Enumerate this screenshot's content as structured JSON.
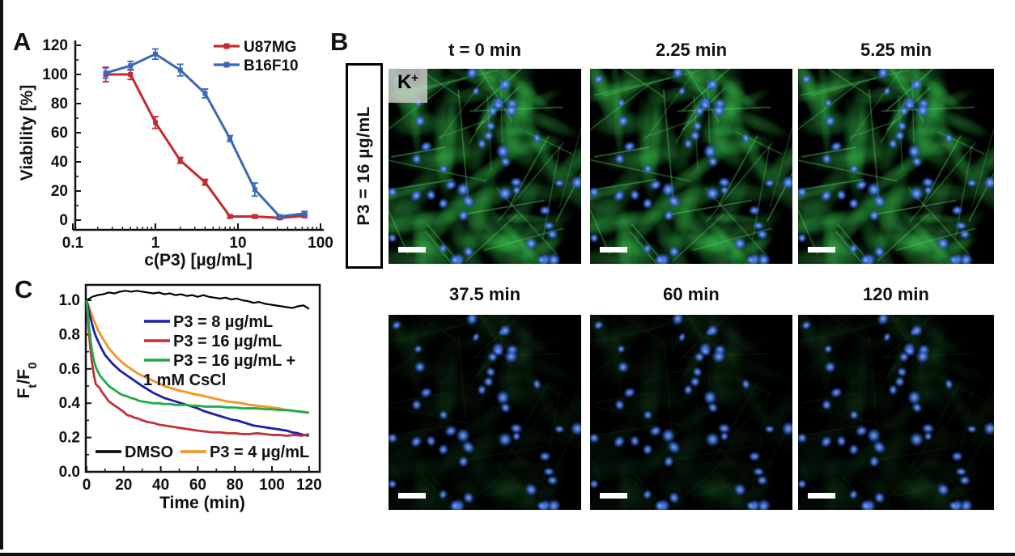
{
  "figure": {
    "background": "#ffffff",
    "edge_color": "#111111"
  },
  "panels": {
    "a_label": "A",
    "b_label": "B",
    "c_label": "C"
  },
  "chart_data": [
    {
      "id": "panel_a_viability",
      "type": "line",
      "x_scale": "log",
      "xlabel": "c(P3) [µg/mL]",
      "ylabel": "Viability [%]",
      "xlim": [
        0.1,
        100
      ],
      "ylim": [
        0,
        120
      ],
      "xticks": [
        0.1,
        1,
        10,
        100
      ],
      "xtick_labels": [
        "0.1",
        "1",
        "10",
        "100"
      ],
      "yticks": [
        0,
        20,
        40,
        60,
        80,
        100,
        120
      ],
      "legend_position": "top-right",
      "grid": false,
      "x": [
        0.25,
        0.5,
        1,
        2,
        4,
        8,
        16,
        32,
        64
      ],
      "series": [
        {
          "name": "U87MG",
          "color": "#c42a30",
          "values": [
            100,
            100,
            67,
            41,
            26,
            2.5,
            2.5,
            1.5,
            3
          ],
          "errors": [
            5,
            3.5,
            4,
            2,
            2,
            1.2,
            1,
            1,
            1.2
          ]
        },
        {
          "name": "B16F10",
          "color": "#3a67b8",
          "values": [
            101,
            106,
            114,
            103,
            87,
            56,
            21,
            2.5,
            4.5
          ],
          "errors": [
            3.5,
            3,
            3.5,
            4,
            3,
            2,
            4.5,
            1,
            1.5
          ]
        }
      ]
    },
    {
      "id": "panel_c_efflux",
      "type": "line",
      "xlabel": "Time (min)",
      "ylabel": "Ft/F0",
      "ylabel_parts": [
        {
          "t": "F"
        },
        {
          "t": "t",
          "sub": true
        },
        {
          "t": "/F"
        },
        {
          "t": "0",
          "sub": true
        }
      ],
      "xlim": [
        0,
        120
      ],
      "ylim": [
        0,
        1.09
      ],
      "xticks": [
        0,
        20,
        40,
        60,
        80,
        100,
        120
      ],
      "yticks": [
        0,
        0.2,
        0.4,
        0.6,
        0.8,
        1.0
      ],
      "ytick_labels": [
        "0.0",
        "0.2",
        "0.4",
        "0.6",
        "0.8",
        "1.0"
      ],
      "grid": false,
      "legend_main": [
        "P3 = 8 µg/mL",
        "P3 = 16 µg/mL",
        "P3 = 16 µg/mL + 1 mM CsCl"
      ],
      "legend_bottom": [
        "DMSO",
        "P3 = 4 µg/mL"
      ],
      "series": [
        {
          "name": "DMSO",
          "color": "#000000",
          "points": [
            [
              0,
              1.0
            ],
            [
              3,
              1.02
            ],
            [
              6,
              1.03
            ],
            [
              9,
              1.035
            ],
            [
              12,
              1.045
            ],
            [
              15,
              1.04
            ],
            [
              18,
              1.05
            ],
            [
              21,
              1.055
            ],
            [
              24,
              1.05
            ],
            [
              27,
              1.055
            ],
            [
              30,
              1.05
            ],
            [
              33,
              1.045
            ],
            [
              36,
              1.04
            ],
            [
              39,
              1.045
            ],
            [
              42,
              1.035
            ],
            [
              45,
              1.04
            ],
            [
              48,
              1.03
            ],
            [
              51,
              1.035
            ],
            [
              54,
              1.025
            ],
            [
              57,
              1.03
            ],
            [
              60,
              1.02
            ],
            [
              63,
              1.03
            ],
            [
              66,
              1.02
            ],
            [
              69,
              1.015
            ],
            [
              72,
              1.01
            ],
            [
              75,
              1.015
            ],
            [
              78,
              1.005
            ],
            [
              81,
              1.01
            ],
            [
              84,
              1.0
            ],
            [
              87,
              0.995
            ],
            [
              90,
              0.985
            ],
            [
              93,
              0.99
            ],
            [
              96,
              0.98
            ],
            [
              99,
              0.975
            ],
            [
              102,
              0.97
            ],
            [
              105,
              0.965
            ],
            [
              108,
              0.96
            ],
            [
              111,
              0.955
            ],
            [
              114,
              0.965
            ],
            [
              117,
              0.97
            ],
            [
              120,
              0.95
            ]
          ]
        },
        {
          "name": "P3 = 4 µg/mL",
          "color": "#f6921e",
          "points": [
            [
              0,
              1.0
            ],
            [
              1,
              0.97
            ],
            [
              2,
              0.94
            ],
            [
              3,
              0.91
            ],
            [
              4,
              0.88
            ],
            [
              5,
              0.855
            ],
            [
              6,
              0.83
            ],
            [
              8,
              0.79
            ],
            [
              10,
              0.755
            ],
            [
              12,
              0.72
            ],
            [
              14,
              0.695
            ],
            [
              16,
              0.67
            ],
            [
              18,
              0.65
            ],
            [
              20,
              0.63
            ],
            [
              22,
              0.615
            ],
            [
              24,
              0.6
            ],
            [
              26,
              0.585
            ],
            [
              28,
              0.57
            ],
            [
              30,
              0.56
            ],
            [
              33,
              0.545
            ],
            [
              36,
              0.53
            ],
            [
              39,
              0.515
            ],
            [
              42,
              0.5
            ],
            [
              45,
              0.49
            ],
            [
              48,
              0.48
            ],
            [
              51,
              0.47
            ],
            [
              54,
              0.465
            ],
            [
              57,
              0.455
            ],
            [
              60,
              0.45
            ],
            [
              64,
              0.44
            ],
            [
              68,
              0.43
            ],
            [
              72,
              0.42
            ],
            [
              76,
              0.41
            ],
            [
              80,
              0.405
            ],
            [
              84,
              0.4
            ],
            [
              88,
              0.39
            ],
            [
              92,
              0.385
            ],
            [
              96,
              0.38
            ],
            [
              100,
              0.375
            ],
            [
              104,
              0.37
            ],
            [
              108,
              0.36
            ],
            [
              112,
              0.355
            ],
            [
              116,
              0.35
            ],
            [
              120,
              0.345
            ]
          ]
        },
        {
          "name": "P3 = 8 µg/mL",
          "color": "#1c1fa8",
          "points": [
            [
              0,
              1.0
            ],
            [
              1,
              0.95
            ],
            [
              2,
              0.9
            ],
            [
              3,
              0.86
            ],
            [
              4,
              0.82
            ],
            [
              5,
              0.79
            ],
            [
              6,
              0.765
            ],
            [
              8,
              0.72
            ],
            [
              10,
              0.68
            ],
            [
              12,
              0.655
            ],
            [
              14,
              0.63
            ],
            [
              16,
              0.61
            ],
            [
              18,
              0.59
            ],
            [
              20,
              0.575
            ],
            [
              22,
              0.56
            ],
            [
              24,
              0.545
            ],
            [
              26,
              0.53
            ],
            [
              28,
              0.515
            ],
            [
              30,
              0.5
            ],
            [
              33,
              0.48
            ],
            [
              36,
              0.46
            ],
            [
              39,
              0.445
            ],
            [
              42,
              0.43
            ],
            [
              45,
              0.42
            ],
            [
              48,
              0.41
            ],
            [
              51,
              0.4
            ],
            [
              54,
              0.39
            ],
            [
              57,
              0.38
            ],
            [
              60,
              0.37
            ],
            [
              63,
              0.355
            ],
            [
              66,
              0.345
            ],
            [
              69,
              0.335
            ],
            [
              72,
              0.325
            ],
            [
              75,
              0.315
            ],
            [
              78,
              0.305
            ],
            [
              81,
              0.3
            ],
            [
              84,
              0.29
            ],
            [
              87,
              0.28
            ],
            [
              90,
              0.27
            ],
            [
              93,
              0.265
            ],
            [
              96,
              0.26
            ],
            [
              99,
              0.255
            ],
            [
              102,
              0.25
            ],
            [
              105,
              0.245
            ],
            [
              108,
              0.24
            ],
            [
              111,
              0.23
            ],
            [
              114,
              0.225
            ],
            [
              117,
              0.215
            ],
            [
              120,
              0.21
            ]
          ]
        },
        {
          "name": "P3 = 16 µg/mL",
          "color": "#c03237",
          "points": [
            [
              0,
              1.0
            ],
            [
              1,
              0.85
            ],
            [
              2,
              0.72
            ],
            [
              3,
              0.63
            ],
            [
              4,
              0.56
            ],
            [
              5,
              0.51
            ],
            [
              6,
              0.5
            ],
            [
              7,
              0.49
            ],
            [
              8,
              0.47
            ],
            [
              10,
              0.44
            ],
            [
              12,
              0.41
            ],
            [
              14,
              0.395
            ],
            [
              16,
              0.38
            ],
            [
              18,
              0.365
            ],
            [
              20,
              0.35
            ],
            [
              22,
              0.33
            ],
            [
              24,
              0.325
            ],
            [
              26,
              0.315
            ],
            [
              28,
              0.31
            ],
            [
              30,
              0.3
            ],
            [
              33,
              0.29
            ],
            [
              36,
              0.285
            ],
            [
              39,
              0.275
            ],
            [
              42,
              0.27
            ],
            [
              45,
              0.265
            ],
            [
              48,
              0.26
            ],
            [
              51,
              0.255
            ],
            [
              54,
              0.25
            ],
            [
              57,
              0.245
            ],
            [
              60,
              0.24
            ],
            [
              64,
              0.235
            ],
            [
              68,
              0.23
            ],
            [
              72,
              0.23
            ],
            [
              76,
              0.225
            ],
            [
              80,
              0.225
            ],
            [
              84,
              0.22
            ],
            [
              88,
              0.22
            ],
            [
              92,
              0.225
            ],
            [
              96,
              0.22
            ],
            [
              100,
              0.215
            ],
            [
              104,
              0.215
            ],
            [
              108,
              0.21
            ],
            [
              112,
              0.215
            ],
            [
              116,
              0.21
            ],
            [
              120,
              0.22
            ]
          ]
        },
        {
          "name": "P3 = 16 µg/mL + 1 mM CsCl",
          "color": "#22a94b",
          "legend_lines": [
            "P3 = 16 µg/mL +",
            "1 mM CsCl"
          ],
          "points": [
            [
              0,
              1.0
            ],
            [
              1,
              0.88
            ],
            [
              2,
              0.78
            ],
            [
              3,
              0.7
            ],
            [
              4,
              0.645
            ],
            [
              5,
              0.61
            ],
            [
              6,
              0.585
            ],
            [
              7,
              0.565
            ],
            [
              8,
              0.55
            ],
            [
              10,
              0.525
            ],
            [
              12,
              0.5
            ],
            [
              14,
              0.485
            ],
            [
              16,
              0.47
            ],
            [
              18,
              0.455
            ],
            [
              20,
              0.445
            ],
            [
              22,
              0.44
            ],
            [
              24,
              0.43
            ],
            [
              26,
              0.425
            ],
            [
              28,
              0.415
            ],
            [
              30,
              0.41
            ],
            [
              33,
              0.405
            ],
            [
              36,
              0.4
            ],
            [
              39,
              0.4
            ],
            [
              42,
              0.395
            ],
            [
              45,
              0.395
            ],
            [
              48,
              0.39
            ],
            [
              51,
              0.39
            ],
            [
              54,
              0.39
            ],
            [
              57,
              0.385
            ],
            [
              60,
              0.385
            ],
            [
              64,
              0.38
            ],
            [
              68,
              0.38
            ],
            [
              72,
              0.38
            ],
            [
              76,
              0.375
            ],
            [
              80,
              0.375
            ],
            [
              84,
              0.37
            ],
            [
              88,
              0.37
            ],
            [
              92,
              0.37
            ],
            [
              96,
              0.365
            ],
            [
              100,
              0.365
            ],
            [
              104,
              0.36
            ],
            [
              108,
              0.36
            ],
            [
              112,
              0.355
            ],
            [
              116,
              0.35
            ],
            [
              120,
              0.345
            ]
          ]
        }
      ]
    }
  ],
  "panel_b": {
    "condition_label": "P3 = 16 µg/mL",
    "ion_label": "K",
    "ion_label_sup": "+",
    "rows": [
      {
        "titles": [
          "t = 0 min",
          "2.25 min",
          "5.25 min"
        ]
      },
      {
        "titles": [
          "37.5 min",
          "60 min",
          "120 min"
        ]
      }
    ],
    "stain_colors": {
      "cytoplasm_green": "#2ca04a",
      "nuclei_blue": "#4a7ae0",
      "background": "#000000"
    }
  }
}
